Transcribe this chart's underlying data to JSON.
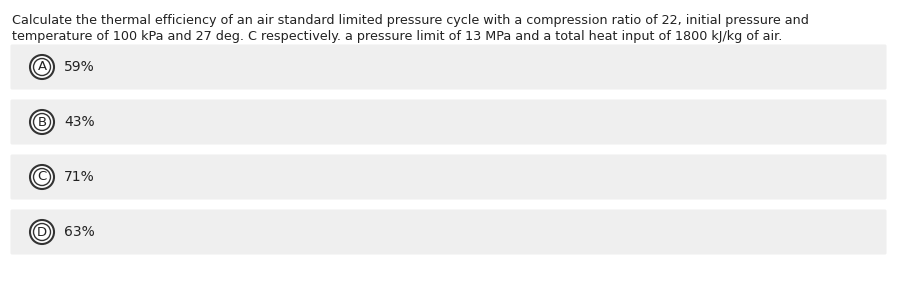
{
  "question_line1": "Calculate the thermal efficiency of an air standard limited pressure cycle with a compression ratio of 22, initial pressure and",
  "question_line2": "temperature of 100 kPa and 27 deg. C respectively. a pressure limit of 13 MPa and a total heat input of 1800 kJ/kg of air.",
  "options": [
    {
      "label": "A",
      "text": "59%"
    },
    {
      "label": "B",
      "text": "43%"
    },
    {
      "label": "C",
      "text": "71%"
    },
    {
      "label": "D",
      "text": "63%"
    }
  ],
  "background_color": "#ffffff",
  "option_bg_color": "#efefef",
  "option_text_color": "#222222",
  "question_text_color": "#222222",
  "circle_edge_color": "#333333",
  "circle_face_color": "#ffffff",
  "font_size_question": 9.2,
  "font_size_option": 10.0,
  "font_size_label": 9.5
}
